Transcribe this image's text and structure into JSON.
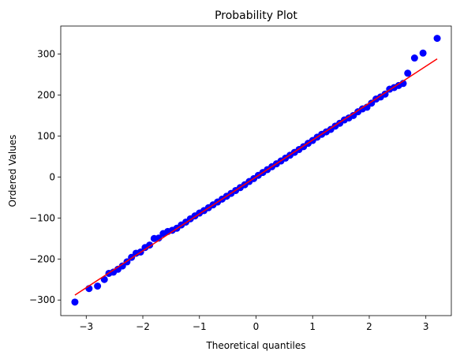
{
  "chart_data": {
    "type": "scatter",
    "title": "Probability Plot",
    "xlabel": "Theoretical quantiles",
    "ylabel": "Ordered Values",
    "xlim": [
      -3.45,
      3.45
    ],
    "ylim": [
      -338,
      368
    ],
    "x_ticks": [
      -3,
      -2,
      -1,
      0,
      1,
      2,
      3
    ],
    "y_ticks": [
      -300,
      -200,
      -100,
      0,
      100,
      200,
      300
    ],
    "grid": false,
    "legend": "none",
    "point_color": "#0000ff",
    "line_color": "#ff0000",
    "fit_line": {
      "slope": 90,
      "intercept": 0,
      "x": [
        -3.2,
        3.2
      ]
    },
    "series": [
      {
        "type": "scatter",
        "x": [
          -3.2,
          -2.95,
          -2.8,
          -2.68,
          -2.6,
          -2.52,
          -2.44,
          -2.36,
          -2.28,
          -2.2,
          -2.12,
          -2.04,
          -1.96,
          -1.88,
          -1.8,
          -1.72,
          -1.64,
          -1.56,
          -1.48,
          -1.4,
          -1.32,
          -1.24,
          -1.16,
          -1.08,
          -1.0,
          -0.92,
          -0.84,
          -0.76,
          -0.68,
          -0.6,
          -0.52,
          -0.44,
          -0.36,
          -0.28,
          -0.2,
          -0.12,
          -0.04,
          0.04,
          0.12,
          0.2,
          0.28,
          0.36,
          0.44,
          0.52,
          0.6,
          0.68,
          0.76,
          0.84,
          0.92,
          1.0,
          1.08,
          1.16,
          1.24,
          1.32,
          1.4,
          1.48,
          1.56,
          1.64,
          1.72,
          1.8,
          1.88,
          1.96,
          2.04,
          2.12,
          2.2,
          2.28,
          2.36,
          2.44,
          2.52,
          2.6,
          2.68,
          2.8,
          2.95,
          3.2
        ],
        "y": [
          -305,
          -272,
          -266,
          -250,
          -235,
          -232,
          -225,
          -217,
          -207,
          -196,
          -186,
          -183,
          -172,
          -166,
          -150,
          -149,
          -138,
          -133,
          -130,
          -125,
          -117,
          -110,
          -102,
          -95,
          -88,
          -82,
          -75,
          -68,
          -61,
          -54,
          -47,
          -40,
          -33,
          -26,
          -19,
          -11,
          -4,
          4,
          11,
          18,
          25,
          32,
          39,
          46,
          53,
          60,
          67,
          74,
          82,
          89,
          97,
          104,
          110,
          116,
          124,
          131,
          139,
          144,
          150,
          159,
          166,
          170,
          180,
          190,
          195,
          202,
          214,
          218,
          223,
          228,
          253,
          290,
          302,
          338
        ]
      }
    ]
  }
}
